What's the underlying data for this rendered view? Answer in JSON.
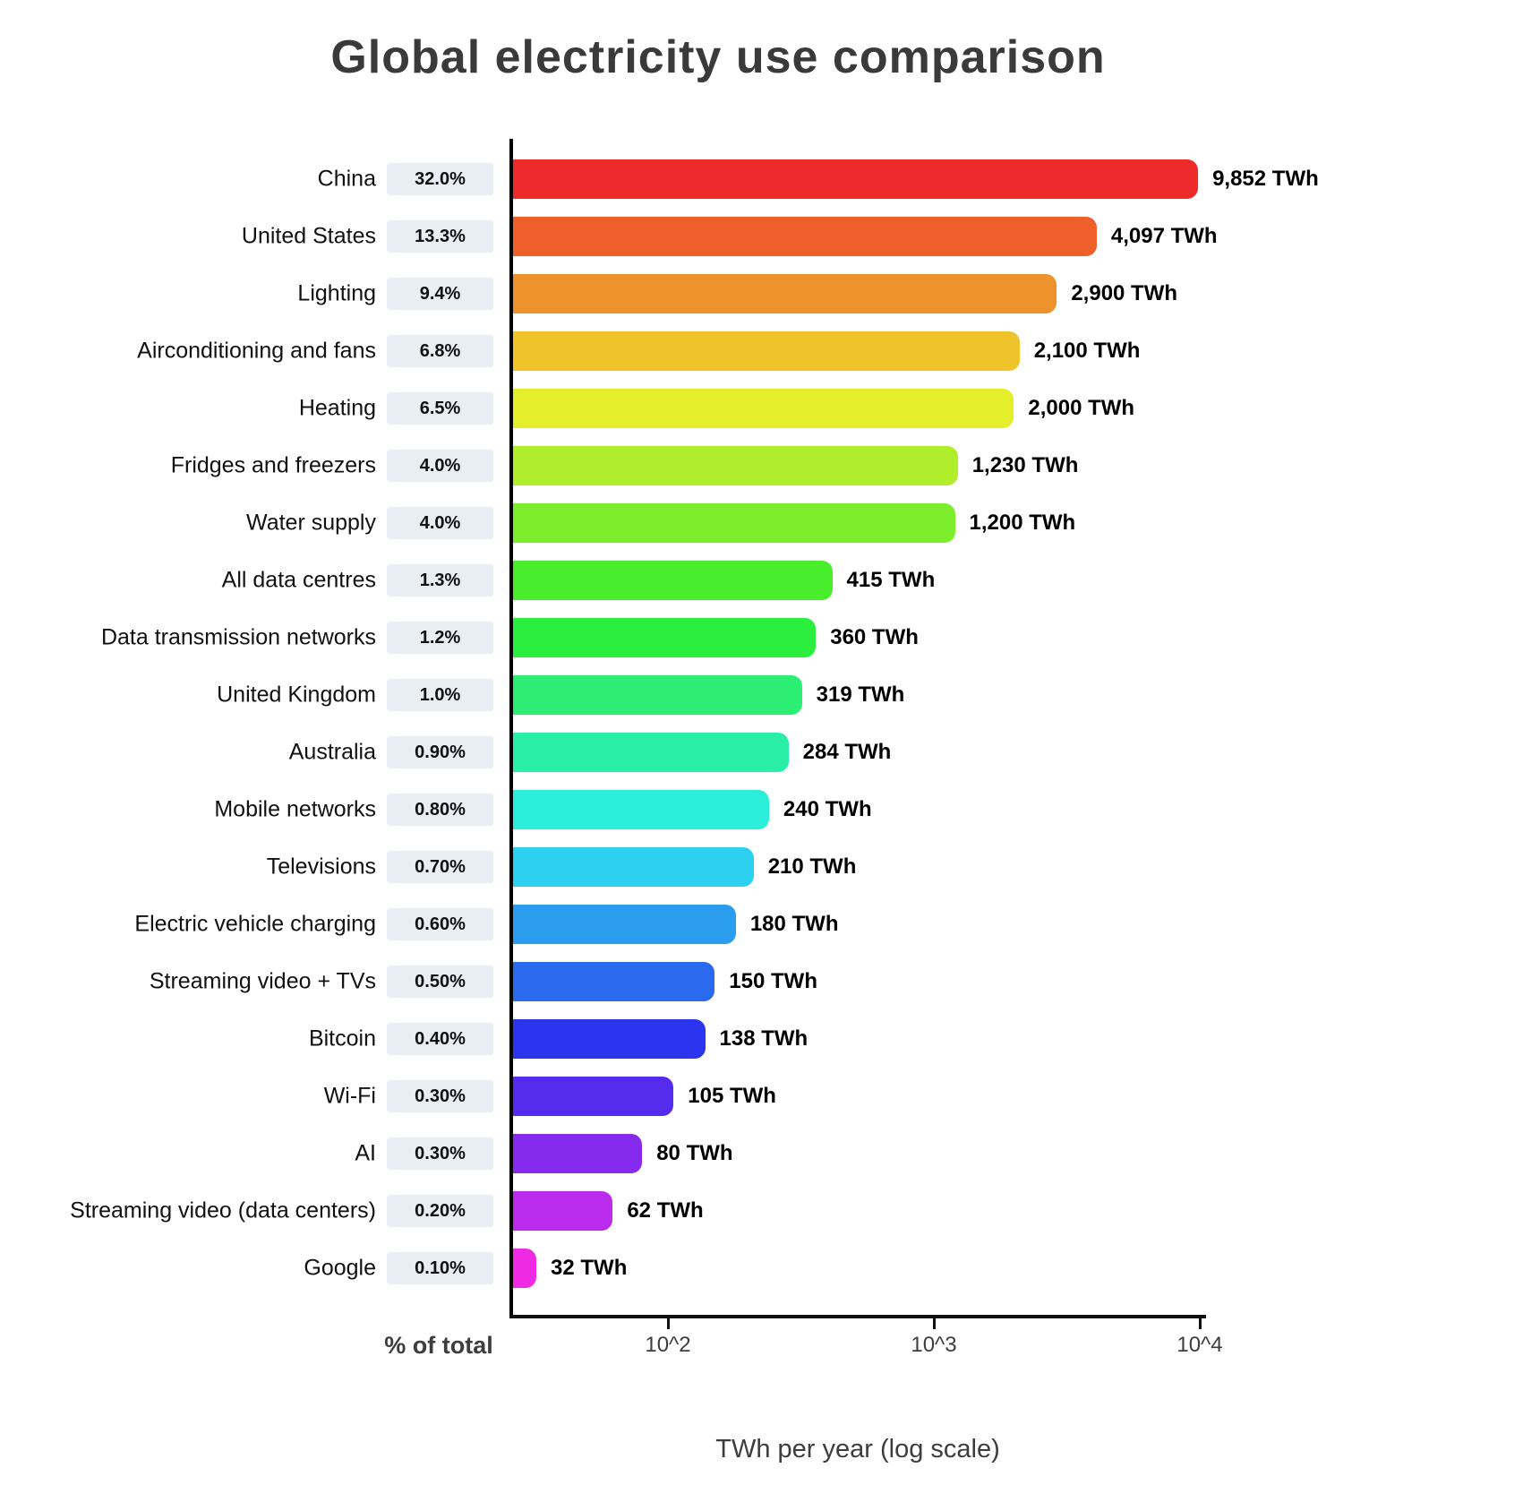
{
  "title": "Global electricity use comparison",
  "percent_header": "% of total",
  "xlabel": "TWh per year (log scale)",
  "chart_data": {
    "type": "bar",
    "orientation": "horizontal",
    "x_scale": "log",
    "title": "Global electricity use comparison",
    "xlabel": "TWh per year (log scale)",
    "percent_column_header": "% of total",
    "x_axis_min": 25.8,
    "x_ticks": [
      100,
      1000,
      10000
    ],
    "x_tick_labels": [
      "10^2",
      "10^3",
      "10^4"
    ],
    "grid": false,
    "rows": [
      {
        "label": "China",
        "percent": "32.0%",
        "value": 9852,
        "value_label": "9,852 TWh",
        "color": "#EE2B2B"
      },
      {
        "label": "United States",
        "percent": "13.3%",
        "value": 4097,
        "value_label": "4,097 TWh",
        "color": "#EE5F2B"
      },
      {
        "label": "Lighting",
        "percent": "9.4%",
        "value": 2900,
        "value_label": "2,900 TWh",
        "color": "#EE932B"
      },
      {
        "label": "Airconditioning and fans",
        "percent": "6.8%",
        "value": 2100,
        "value_label": "2,100 TWh",
        "color": "#EEC32B"
      },
      {
        "label": "Heating",
        "percent": "6.5%",
        "value": 2000,
        "value_label": "2,000 TWh",
        "color": "#E4EE2B"
      },
      {
        "label": "Fridges and freezers",
        "percent": "4.0%",
        "value": 1230,
        "value_label": "1,230 TWh",
        "color": "#B0EE2B"
      },
      {
        "label": "Water supply",
        "percent": "4.0%",
        "value": 1200,
        "value_label": "1,200 TWh",
        "color": "#7CEE2B"
      },
      {
        "label": "All data centres",
        "percent": "1.3%",
        "value": 415,
        "value_label": "415 TWh",
        "color": "#48EE2B"
      },
      {
        "label": "Data transmission networks",
        "percent": "1.2%",
        "value": 360,
        "value_label": "360 TWh",
        "color": "#2BEE3E"
      },
      {
        "label": "United Kingdom",
        "percent": "1.0%",
        "value": 319,
        "value_label": "319 TWh",
        "color": "#2BEE72"
      },
      {
        "label": "Australia",
        "percent": "0.90%",
        "value": 284,
        "value_label": "284 TWh",
        "color": "#2BEEA6"
      },
      {
        "label": "Mobile networks",
        "percent": "0.80%",
        "value": 240,
        "value_label": "240 TWh",
        "color": "#2BEEDA"
      },
      {
        "label": "Televisions",
        "percent": "0.70%",
        "value": 210,
        "value_label": "210 TWh",
        "color": "#2BD1EE"
      },
      {
        "label": "Electric vehicle charging",
        "percent": "0.60%",
        "value": 180,
        "value_label": "180 TWh",
        "color": "#2B9DEE"
      },
      {
        "label": "Streaming video + TVs",
        "percent": "0.50%",
        "value": 150,
        "value_label": "150 TWh",
        "color": "#2B69EE"
      },
      {
        "label": "Bitcoin",
        "percent": "0.40%",
        "value": 138,
        "value_label": "138 TWh",
        "color": "#2B34EE"
      },
      {
        "label": "Wi-Fi",
        "percent": "0.30%",
        "value": 105,
        "value_label": "105 TWh",
        "color": "#552BEE"
      },
      {
        "label": "AI",
        "percent": "0.30%",
        "value": 80,
        "value_label": "80 TWh",
        "color": "#862BEE"
      },
      {
        "label": "Streaming video (data centers)",
        "percent": "0.20%",
        "value": 62,
        "value_label": "62 TWh",
        "color": "#BA2BEE"
      },
      {
        "label": "Google",
        "percent": "0.10%",
        "value": 32,
        "value_label": "32 TWh",
        "color": "#EE2BE2"
      }
    ]
  }
}
